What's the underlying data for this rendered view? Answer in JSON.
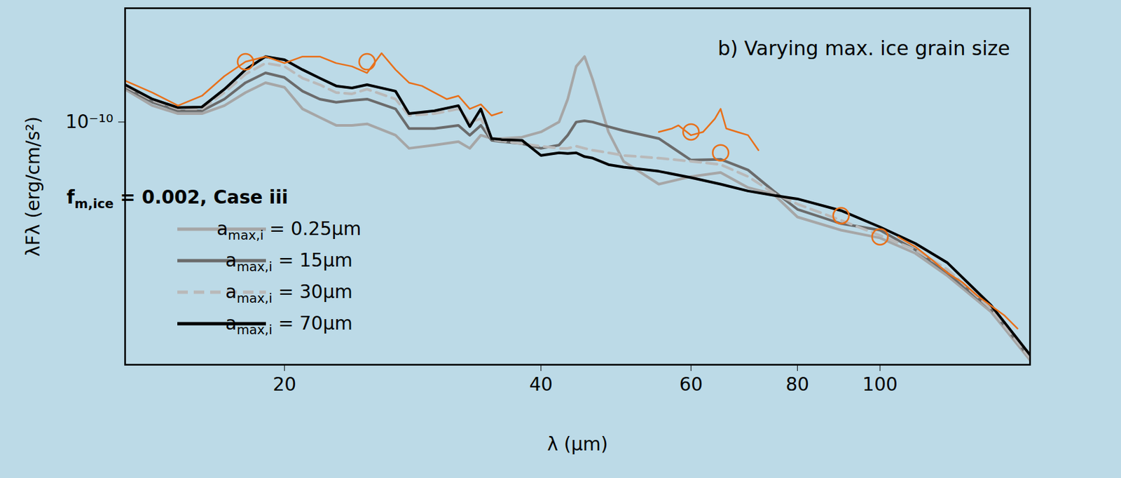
{
  "chart_data": {
    "type": "line",
    "title": "b) Varying max. ice grain size",
    "legend_title": "fm,ice = 0.002, Case iii",
    "x_label": "λ (μm)",
    "y_label": "λFλ (erg/cm/s²)",
    "log": true,
    "xlim": [
      13,
      150
    ],
    "ylim": [
      3.07e-11,
      1.74e-10
    ],
    "xticks": [
      20,
      40,
      60,
      80,
      100
    ],
    "yticks": [
      {
        "value": 1e-10,
        "label": "10⁻¹⁰"
      }
    ],
    "legend": "left",
    "series": [
      {
        "name": "amax,i = 0.25μm",
        "color": "#a6a6a6",
        "line_style": "solid",
        "x": [
          13,
          14,
          15,
          16,
          17,
          18,
          19,
          20,
          21,
          22,
          23,
          24,
          25,
          27,
          28,
          30,
          32,
          33,
          34,
          35,
          36,
          38,
          40,
          42,
          43,
          44,
          45,
          46,
          48,
          50,
          55,
          60,
          65,
          70,
          75,
          80,
          90,
          100,
          110,
          120,
          135,
          150
        ],
        "values": [
          1.173e-10,
          1.083e-10,
          1.042e-10,
          1.042e-10,
          1.083e-10,
          1.154e-10,
          1.211e-10,
          1.184e-10,
          1.066e-10,
          1.023e-10,
          9.84e-11,
          9.84e-11,
          9.91e-11,
          9.38e-11,
          8.8e-11,
          8.94e-11,
          9.09e-11,
          8.8e-11,
          9.38e-11,
          9.23e-11,
          9.23e-11,
          9.29e-11,
          9.53e-11,
          1e-10,
          1.118e-10,
          1.311e-10,
          1.375e-10,
          1.23e-10,
          9.53e-11,
          8.26e-11,
          7.39e-11,
          7.67e-11,
          7.82e-11,
          7.27e-11,
          7.04e-11,
          6.3e-11,
          5.91e-11,
          5.69e-11,
          5.28e-11,
          4.73e-11,
          3.97e-11,
          3.14e-11
        ]
      },
      {
        "name": "amax,i = 15μm",
        "color": "#6b6b6b",
        "line_style": "solid",
        "x": [
          13,
          14,
          15,
          16,
          17,
          18,
          19,
          20,
          21,
          22,
          23,
          24,
          25,
          27,
          28,
          30,
          32,
          33,
          34,
          35,
          36,
          38,
          40,
          42,
          43,
          44,
          45,
          46,
          48,
          50,
          55,
          60,
          65,
          70,
          75,
          80,
          90,
          100,
          110,
          120,
          135,
          150
        ],
        "values": [
          1.184e-10,
          1.101e-10,
          1.056e-10,
          1.056e-10,
          1.118e-10,
          1.211e-10,
          1.27e-10,
          1.242e-10,
          1.162e-10,
          1.118e-10,
          1.101e-10,
          1.111e-10,
          1.118e-10,
          1.066e-10,
          9.69e-11,
          9.69e-11,
          9.84e-11,
          9.38e-11,
          9.84e-11,
          9.15e-11,
          9.09e-11,
          9e-11,
          8.8e-11,
          8.94e-11,
          9.38e-11,
          1e-10,
          1.006e-10,
          1e-10,
          9.78e-11,
          9.59e-11,
          9.23e-11,
          8.31e-11,
          8.34e-11,
          7.92e-11,
          7.15e-11,
          6.54e-11,
          6.1e-11,
          5.91e-11,
          5.37e-11,
          4.8e-11,
          4.03e-11,
          3.17e-11
        ]
      },
      {
        "name": "amax,i = 30μm",
        "color": "#b9b9b9",
        "line_style": "dashed",
        "x": [
          13,
          14,
          15,
          16,
          17,
          18,
          19,
          20,
          21,
          22,
          23,
          24,
          25,
          27,
          28,
          30,
          32,
          33,
          34,
          35,
          36,
          38,
          40,
          42,
          43,
          44,
          45,
          46,
          48,
          50,
          55,
          60,
          65,
          70,
          75,
          80,
          90,
          100,
          110,
          120,
          135,
          150
        ],
        "values": [
          1.192e-10,
          1.111e-10,
          1.066e-10,
          1.066e-10,
          1.154e-10,
          1.262e-10,
          1.332e-10,
          1.311e-10,
          1.238e-10,
          1.199e-10,
          1.154e-10,
          1.147e-10,
          1.173e-10,
          1.118e-10,
          1.032e-10,
          1.042e-10,
          1.066e-10,
          1e-10,
          1.016e-10,
          9.18e-11,
          9.12e-11,
          9e-11,
          8.89e-11,
          8.8e-11,
          8.8e-11,
          8.89e-11,
          8.8e-11,
          8.72e-11,
          8.61e-11,
          8.5e-11,
          8.39e-11,
          8.26e-11,
          8.13e-11,
          7.67e-11,
          7.08e-11,
          6.71e-11,
          6.2e-11,
          5.76e-11,
          5.37e-11,
          4.88e-11,
          4.03e-11,
          3.17e-11
        ]
      },
      {
        "name": "amax,i = 70μm",
        "color": "#000000",
        "line_style": "solid",
        "x": [
          13,
          14,
          15,
          16,
          17,
          18,
          19,
          20,
          21,
          22,
          23,
          24,
          25,
          27,
          28,
          30,
          32,
          33,
          34,
          35,
          36,
          38,
          40,
          42,
          43,
          44,
          45,
          46,
          48,
          50,
          55,
          60,
          65,
          70,
          75,
          80,
          90,
          100,
          110,
          120,
          135,
          150
        ],
        "values": [
          1.199e-10,
          1.118e-10,
          1.073e-10,
          1.076e-10,
          1.173e-10,
          1.29e-10,
          1.375e-10,
          1.354e-10,
          1.29e-10,
          1.238e-10,
          1.192e-10,
          1.18e-10,
          1.199e-10,
          1.162e-10,
          1.042e-10,
          1.056e-10,
          1.083e-10,
          9.78e-11,
          1.066e-10,
          9.23e-11,
          9.18e-11,
          9.15e-11,
          8.5e-11,
          8.61e-11,
          8.58e-11,
          8.61e-11,
          8.45e-11,
          8.39e-11,
          8.13e-11,
          8.03e-11,
          7.87e-11,
          7.63e-11,
          7.39e-11,
          7.15e-11,
          7e-11,
          6.88e-11,
          6.5e-11,
          6e-11,
          5.54e-11,
          5.04e-11,
          4.1e-11,
          3.22e-11
        ]
      },
      {
        "color": "#e8701a",
        "line_style": "solid",
        "x": [
          13,
          14,
          15,
          16,
          17,
          18,
          19,
          20,
          21,
          22,
          23,
          24,
          25,
          26,
          27,
          28,
          29,
          30,
          31,
          32,
          33,
          34,
          35,
          36,
          45,
          55,
          57,
          58,
          60,
          62,
          64,
          65,
          66,
          68,
          70,
          72,
          90,
          105,
          110,
          115,
          120,
          125,
          130,
          140,
          145
        ],
        "values": [
          1.223e-10,
          1.154e-10,
          1.083e-10,
          1.136e-10,
          1.25e-10,
          1.341e-10,
          1.375e-10,
          1.332e-10,
          1.375e-10,
          1.375e-10,
          1.332e-10,
          1.311e-10,
          1.27e-10,
          1.398e-10,
          1.29e-10,
          1.211e-10,
          1.192e-10,
          1.154e-10,
          1.118e-10,
          1.136e-10,
          1.066e-10,
          1.09e-10,
          1.032e-10,
          1.049e-10,
          null,
          9.53e-11,
          9.69e-11,
          9.84e-11,
          9.38e-11,
          9.53e-11,
          1.016e-10,
          1.066e-10,
          9.69e-11,
          9.53e-11,
          9.38e-11,
          8.72e-11,
          null,
          5.72e-11,
          5.45e-11,
          5.12e-11,
          4.8e-11,
          4.58e-11,
          4.3e-11,
          3.9e-11,
          3.66e-11
        ]
      },
      {
        "color": "#e8701a",
        "type": "scatter",
        "marker": "circle-open",
        "x": [
          18,
          25,
          60,
          65,
          90,
          100
        ],
        "values": [
          1.341e-10,
          1.341e-10,
          9.53e-11,
          8.61e-11,
          6.34e-11,
          5.72e-11
        ]
      }
    ]
  }
}
